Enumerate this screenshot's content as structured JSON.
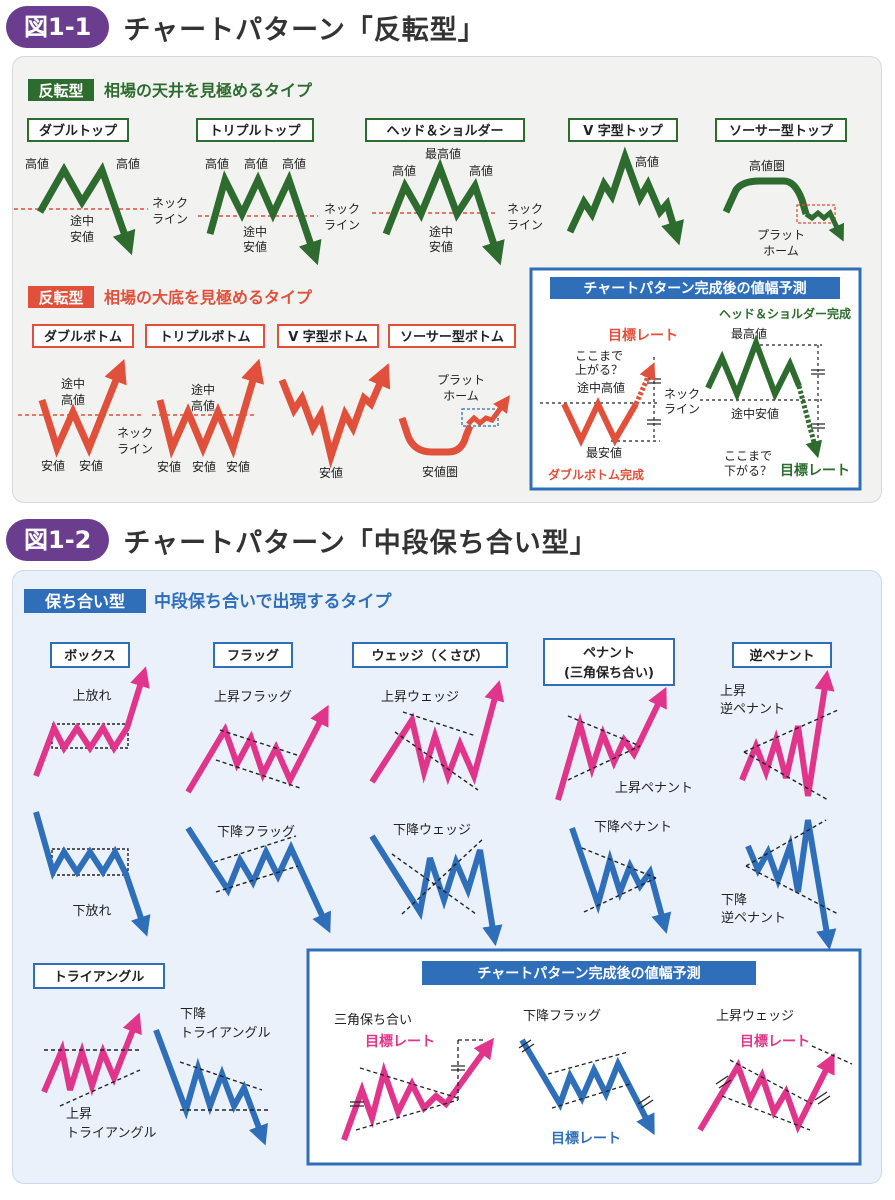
{
  "fig1": {
    "badge": "図1-1",
    "title": "チャートパターン「反転型」",
    "top_tag": "反転型",
    "top_desc": "相場の天井を見極めるタイプ",
    "bottom_tag": "反転型",
    "bottom_desc": "相場の大底を見極めるタイプ",
    "top_patterns": [
      "ダブルトップ",
      "トリプルトップ",
      "ヘッド＆ショルダー",
      "V 字型トップ",
      "ソーサー型トップ"
    ],
    "bottom_patterns": [
      "ダブルボトム",
      "トリプルボトム",
      "V 字型ボトム",
      "ソーサー型ボトム"
    ],
    "labels": {
      "high": "高値",
      "top_high": "最高値",
      "high_zone": "高値圏",
      "mid_low_1": "途中",
      "mid_low_2": "安値",
      "neck_1": "ネック",
      "neck_2": "ライン",
      "platform_1": "プラット",
      "platform_2": "ホーム",
      "mid_high_1": "途中",
      "mid_high_2": "高値",
      "low": "安値",
      "low_zone": "安値圏"
    },
    "forecast": {
      "title": "チャートパターン完成後の値幅予測",
      "hs_complete": "ヘッド＆ショルダー完成",
      "target_rate": "目標レート",
      "up_q_1": "ここまで",
      "up_q_2": "上がる？",
      "mid_high": "途中高値",
      "neck_1": "ネック",
      "neck_2": "ライン",
      "lowest": "最安値",
      "db_complete": "ダブルボトム完成",
      "top_high": "最高値",
      "mid_low": "途中安値",
      "down_q_1": "ここまで",
      "down_q_2": "下がる？",
      "target_rate_2": "目標レート"
    }
  },
  "fig2": {
    "badge": "図1-2",
    "title": "チャートパターン「中段保ち合い型」",
    "tag": "保ち合い型",
    "desc": "中段保ち合いで出現するタイプ",
    "patterns": [
      "ボックス",
      "フラッグ",
      "ウェッジ（くさび）",
      "ペナント",
      "(三角保ち合い)",
      "逆ペナント",
      "トライアングル"
    ],
    "labels": {
      "up_break": "上放れ",
      "down_break": "下放れ",
      "up_flag": "上昇フラッグ",
      "down_flag": "下降フラッグ",
      "up_wedge": "上昇ウェッジ",
      "down_wedge": "下降ウェッジ",
      "up_pennant": "上昇ペナント",
      "down_pennant": "下降ペナント",
      "up_rev_1": "上昇",
      "up_rev_2": "逆ペナント",
      "down_rev_1": "下降",
      "down_rev_2": "逆ペナント",
      "down_tri_1": "下降",
      "down_tri_2": "トライアングル",
      "up_tri_1": "上昇",
      "up_tri_2": "トライアングル"
    },
    "forecast": {
      "title": "チャートパターン完成後の値幅予測",
      "sankaku": "三角保ち合い",
      "target_1": "目標レート",
      "down_flag": "下降フラッグ",
      "target_2": "目標レート",
      "up_wedge": "上昇ウェッジ",
      "target_3": "目標レート"
    }
  },
  "colors": {
    "purple": "#6a3d8f",
    "green": "#2e6b2f",
    "red": "#e0503a",
    "blue": "#2f6fba",
    "pink": "#e0358a"
  }
}
